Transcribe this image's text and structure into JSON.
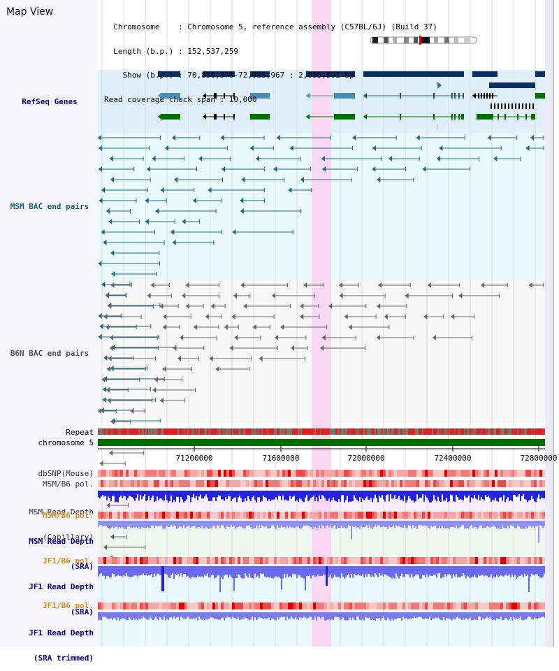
{
  "header": {
    "title": "Map View",
    "info_lines": [
      "  Chromosome    : Chromosome 5, reference assembly (C57BL/6J) (Build 37)",
      "  Length (b.p.) : 152,537,259",
      "    Show (b.p.) : 70,850,376-72,935,967 : 2,085,592 bp",
      "Read coverage check span : 10,000"
    ]
  },
  "tracks": {
    "refseq": "RefSeq Genes",
    "msm_bac": "MSM BAC end pairs",
    "b6n_bac": "B6N BAC end pairs",
    "repeat": "Repeat",
    "chromosome": "chromosome 5",
    "dbsnp": "dbSNP(Mouse)",
    "msm_b6_pol_1": "MSM/B6 pol.",
    "msm_depth_cap": [
      "MSM Read Depth",
      "(Capillary)"
    ],
    "msm_b6_pol_2": "MSM/B6 pol.",
    "msm_depth_sra": [
      "MSM Read Depth",
      "(SRA)"
    ],
    "jf1_b6_pol_1": "JF1/B6 pol.",
    "jf1_depth_sra": [
      "JF1 Read Depth",
      "(SRA)"
    ],
    "jf1_b6_pol_2": "JF1/B6 pol.",
    "jf1_depth_trim": [
      "JF1 Read Depth",
      "(SRA trimmed)"
    ]
  },
  "axis": {
    "ticks": [
      "71200000",
      "71600000",
      "72000000",
      "72400000",
      "72800000"
    ]
  },
  "colors": {
    "refseq_label": "#00008b",
    "msm_label": "#1a5f7a",
    "b6n_label": "#555555",
    "pol_label": "#d4901a",
    "depth_label": "#00008b",
    "highlight": "#f9d7f2",
    "gene_navy": "#0c2f63",
    "gene_teal": "#4a8db8",
    "gene_green": "#007000",
    "chromosome": "#006b00"
  }
}
